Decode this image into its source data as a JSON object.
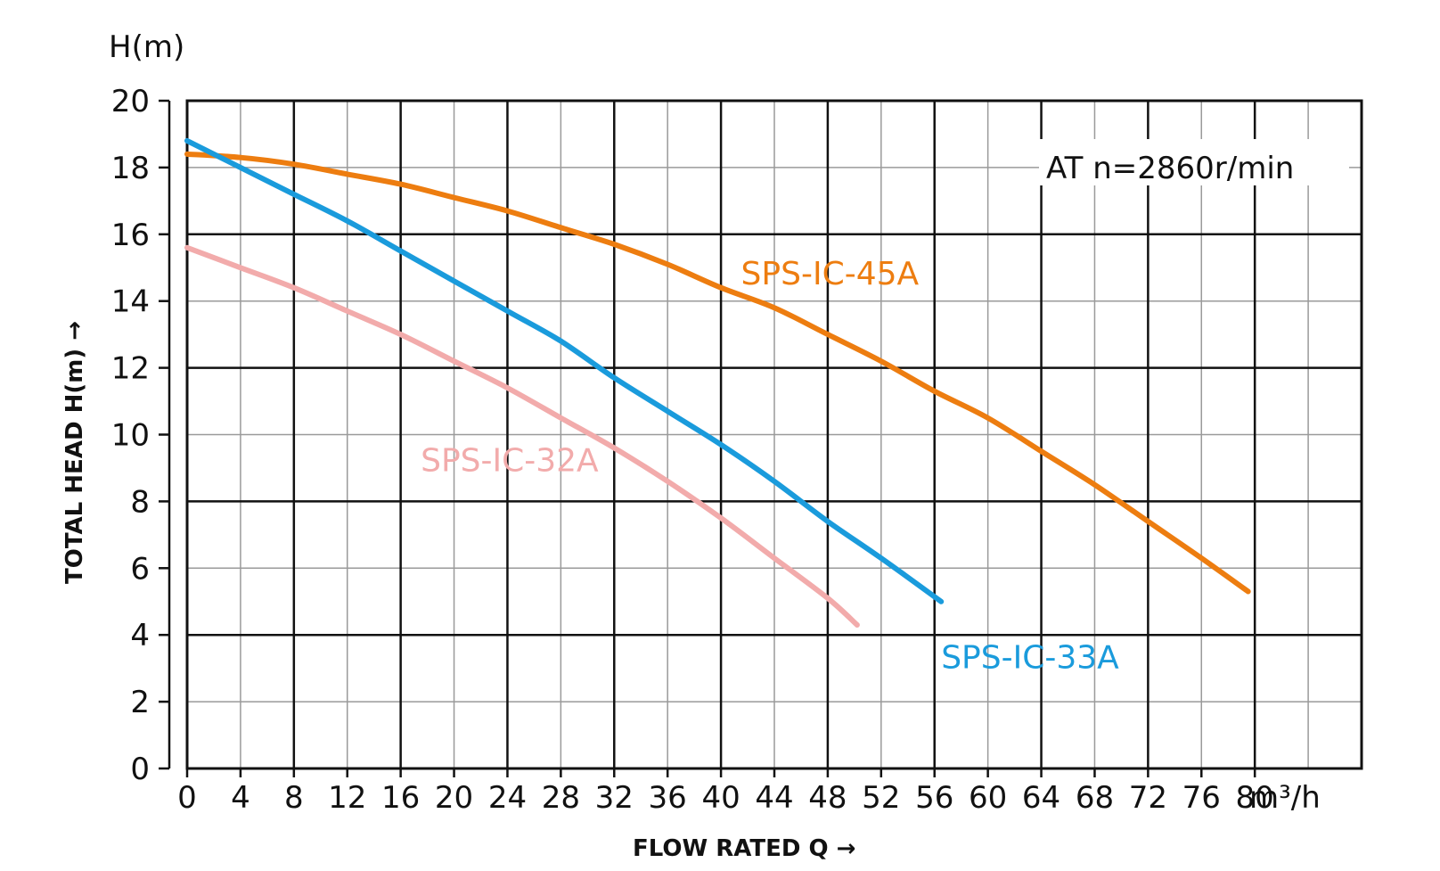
{
  "chart_data": {
    "type": "line",
    "y_unit_label": "H(m)",
    "x_unit_label": "m³/h",
    "xlabel": "FLOW RATED Q →",
    "ylabel": "TOTAL HEAD H(m) →",
    "annotation": "AT n=2860r/min",
    "xlim": [
      0,
      88
    ],
    "ylim": [
      0,
      20
    ],
    "x_ticks": [
      0,
      4,
      8,
      12,
      16,
      20,
      24,
      28,
      32,
      36,
      40,
      44,
      48,
      52,
      56,
      60,
      64,
      68,
      72,
      76,
      80
    ],
    "y_ticks": [
      0,
      2,
      4,
      6,
      8,
      10,
      12,
      14,
      16,
      18,
      20
    ],
    "x_tick_labels": [
      "0",
      "4",
      "8",
      "12",
      "16",
      "20",
      "24",
      "28",
      "32",
      "36",
      "40",
      "44",
      "48",
      "52",
      "56",
      "60",
      "64",
      "68",
      "72",
      "76",
      "80"
    ],
    "y_tick_labels": [
      "0",
      "2",
      "4",
      "6",
      "8",
      "10",
      "12",
      "14",
      "16",
      "18",
      "20"
    ],
    "grid": true,
    "series": [
      {
        "name": "SPS-IC-45A",
        "color": "#ed7d10",
        "points": [
          [
            0,
            18.4
          ],
          [
            4,
            18.3
          ],
          [
            8,
            18.1
          ],
          [
            12,
            17.8
          ],
          [
            16,
            17.5
          ],
          [
            20,
            17.1
          ],
          [
            24,
            16.7
          ],
          [
            28,
            16.2
          ],
          [
            32,
            15.7
          ],
          [
            36,
            15.1
          ],
          [
            40,
            14.4
          ],
          [
            44,
            13.8
          ],
          [
            48,
            13.0
          ],
          [
            52,
            12.2
          ],
          [
            56,
            11.3
          ],
          [
            60,
            10.5
          ],
          [
            64,
            9.5
          ],
          [
            68,
            8.5
          ],
          [
            72,
            7.4
          ],
          [
            76,
            6.3
          ],
          [
            79.5,
            5.3
          ]
        ]
      },
      {
        "name": "SPS-IC-33A",
        "color": "#1a9bdc",
        "points": [
          [
            0,
            18.8
          ],
          [
            4,
            18.0
          ],
          [
            8,
            17.2
          ],
          [
            12,
            16.4
          ],
          [
            16,
            15.5
          ],
          [
            20,
            14.6
          ],
          [
            24,
            13.7
          ],
          [
            28,
            12.8
          ],
          [
            32,
            11.7
          ],
          [
            36,
            10.7
          ],
          [
            40,
            9.7
          ],
          [
            44,
            8.6
          ],
          [
            48,
            7.4
          ],
          [
            52,
            6.3
          ],
          [
            56.5,
            5.0
          ]
        ]
      },
      {
        "name": "SPS-IC-32A",
        "color": "#f2abab",
        "points": [
          [
            0,
            15.6
          ],
          [
            4,
            15.0
          ],
          [
            8,
            14.4
          ],
          [
            12,
            13.7
          ],
          [
            16,
            13.0
          ],
          [
            20,
            12.2
          ],
          [
            24,
            11.4
          ],
          [
            28,
            10.5
          ],
          [
            32,
            9.6
          ],
          [
            36,
            8.6
          ],
          [
            40,
            7.5
          ],
          [
            44,
            6.3
          ],
          [
            48,
            5.1
          ],
          [
            50.2,
            4.3
          ]
        ]
      }
    ],
    "series_label_positions": [
      {
        "name": "SPS-IC-45A",
        "x": 41.5,
        "y": 14.5
      },
      {
        "name": "SPS-IC-32A",
        "x": 17.5,
        "y": 8.9
      },
      {
        "name": "SPS-IC-33A",
        "x": 56.5,
        "y": 3.0
      }
    ]
  }
}
